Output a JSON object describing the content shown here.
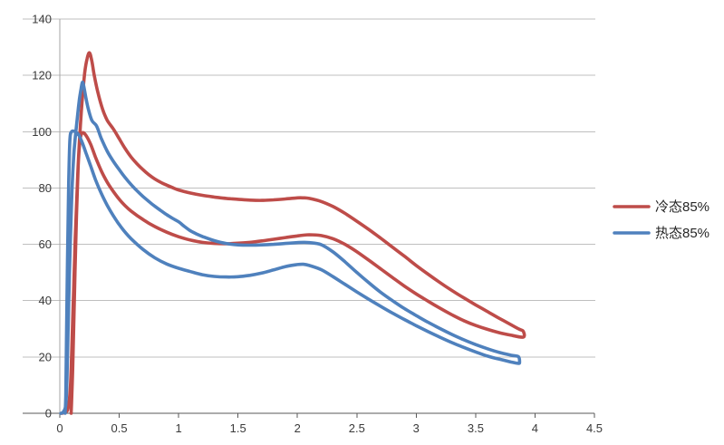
{
  "chart_data": {
    "type": "line",
    "title": "",
    "xlabel": "",
    "ylabel": "",
    "grid": "horizontal",
    "legend_position": "right-outside",
    "x_axis": {
      "min": 0,
      "max": 4.5,
      "ticks": [
        0,
        0.5,
        1,
        1.5,
        2,
        2.5,
        3,
        3.5,
        4,
        4.5
      ],
      "tick_labels": [
        "0",
        "0.5",
        "1",
        "1.5",
        "2",
        "2.5",
        "3",
        "3.5",
        "4",
        "4.5"
      ]
    },
    "y_axis": {
      "min": 0,
      "max": 140,
      "ticks": [
        0,
        20,
        40,
        60,
        80,
        100,
        120,
        140
      ],
      "tick_labels": [
        "0",
        "20",
        "40",
        "60",
        "80",
        "100",
        "120",
        "140"
      ]
    },
    "series": [
      {
        "name": "冷态85%",
        "color": "#BE4C49",
        "shape": "closed-loop",
        "peak": [
          0.25,
          128
        ],
        "points": [
          [
            0.02,
            0
          ],
          [
            0.05,
            0.5
          ],
          [
            0.07,
            2
          ],
          [
            0.09,
            10
          ],
          [
            0.11,
            35
          ],
          [
            0.13,
            62
          ],
          [
            0.15,
            84
          ],
          [
            0.17,
            100
          ],
          [
            0.19,
            112
          ],
          [
            0.21,
            121
          ],
          [
            0.23,
            126
          ],
          [
            0.25,
            128
          ],
          [
            0.27,
            125
          ],
          [
            0.29,
            120
          ],
          [
            0.32,
            114
          ],
          [
            0.36,
            108
          ],
          [
            0.4,
            104
          ],
          [
            0.45,
            101
          ],
          [
            0.5,
            97.5
          ],
          [
            0.55,
            94
          ],
          [
            0.6,
            91
          ],
          [
            0.65,
            88.6
          ],
          [
            0.7,
            86.5
          ],
          [
            0.75,
            84.7
          ],
          [
            0.8,
            83.2
          ],
          [
            0.85,
            82
          ],
          [
            0.9,
            81
          ],
          [
            0.95,
            80.1
          ],
          [
            1.0,
            79.3
          ],
          [
            1.1,
            78.2
          ],
          [
            1.2,
            77.4
          ],
          [
            1.3,
            76.8
          ],
          [
            1.4,
            76.3
          ],
          [
            1.5,
            76
          ],
          [
            1.6,
            75.7
          ],
          [
            1.7,
            75.6
          ],
          [
            1.8,
            75.8
          ],
          [
            1.9,
            76.1
          ],
          [
            2.0,
            76.5
          ],
          [
            2.05,
            76.5
          ],
          [
            2.1,
            76.3
          ],
          [
            2.2,
            75.2
          ],
          [
            2.3,
            73.4
          ],
          [
            2.4,
            71
          ],
          [
            2.5,
            68.2
          ],
          [
            2.6,
            65.3
          ],
          [
            2.7,
            62.2
          ],
          [
            2.8,
            59
          ],
          [
            2.9,
            55.8
          ],
          [
            3.0,
            52.5
          ],
          [
            3.1,
            49.4
          ],
          [
            3.2,
            46.4
          ],
          [
            3.3,
            43.6
          ],
          [
            3.4,
            41
          ],
          [
            3.5,
            38.5
          ],
          [
            3.6,
            36.1
          ],
          [
            3.7,
            33.7
          ],
          [
            3.8,
            31.4
          ],
          [
            3.87,
            29.8
          ],
          [
            3.9,
            29.2
          ],
          [
            3.91,
            27.5
          ],
          [
            3.89,
            27
          ],
          [
            3.8,
            27.7
          ],
          [
            3.7,
            28.6
          ],
          [
            3.6,
            29.8
          ],
          [
            3.5,
            31.2
          ],
          [
            3.4,
            32.9
          ],
          [
            3.3,
            35
          ],
          [
            3.2,
            37.3
          ],
          [
            3.1,
            39.8
          ],
          [
            3.0,
            42.4
          ],
          [
            2.9,
            45.2
          ],
          [
            2.8,
            48.2
          ],
          [
            2.7,
            51.3
          ],
          [
            2.6,
            54.4
          ],
          [
            2.5,
            57.4
          ],
          [
            2.4,
            60
          ],
          [
            2.3,
            62
          ],
          [
            2.2,
            63.1
          ],
          [
            2.1,
            63.4
          ],
          [
            2.0,
            63
          ],
          [
            1.9,
            62.4
          ],
          [
            1.8,
            61.8
          ],
          [
            1.7,
            61.2
          ],
          [
            1.6,
            60.7
          ],
          [
            1.5,
            60.4
          ],
          [
            1.4,
            60.2
          ],
          [
            1.3,
            60.3
          ],
          [
            1.2,
            60.7
          ],
          [
            1.1,
            61.5
          ],
          [
            1.0,
            62.7
          ],
          [
            0.9,
            64.3
          ],
          [
            0.8,
            66.3
          ],
          [
            0.7,
            68.8
          ],
          [
            0.6,
            71.8
          ],
          [
            0.55,
            73.7
          ],
          [
            0.5,
            76
          ],
          [
            0.45,
            78.8
          ],
          [
            0.4,
            82
          ],
          [
            0.35,
            86
          ],
          [
            0.3,
            91
          ],
          [
            0.26,
            95.5
          ],
          [
            0.22,
            98.7
          ],
          [
            0.19,
            99.6
          ],
          [
            0.17,
            97
          ],
          [
            0.155,
            88
          ],
          [
            0.14,
            70
          ],
          [
            0.125,
            45
          ],
          [
            0.11,
            18
          ],
          [
            0.1,
            5
          ],
          [
            0.095,
            0
          ]
        ]
      },
      {
        "name": "热态85%",
        "color": "#4F81BD",
        "shape": "closed-loop",
        "peak": [
          0.19,
          117.5
        ],
        "points": [
          [
            0.01,
            0
          ],
          [
            0.03,
            0.5
          ],
          [
            0.05,
            3
          ],
          [
            0.06,
            12
          ],
          [
            0.07,
            30
          ],
          [
            0.08,
            48
          ],
          [
            0.09,
            63
          ],
          [
            0.1,
            76
          ],
          [
            0.11,
            86
          ],
          [
            0.12,
            93
          ],
          [
            0.135,
            100
          ],
          [
            0.15,
            106
          ],
          [
            0.165,
            111.5
          ],
          [
            0.18,
            115.5
          ],
          [
            0.19,
            117.5
          ],
          [
            0.2,
            116.5
          ],
          [
            0.22,
            112
          ],
          [
            0.24,
            108
          ],
          [
            0.27,
            104
          ],
          [
            0.31,
            102
          ],
          [
            0.35,
            97.5
          ],
          [
            0.4,
            93
          ],
          [
            0.45,
            89.5
          ],
          [
            0.5,
            86.5
          ],
          [
            0.55,
            83.7
          ],
          [
            0.6,
            81.2
          ],
          [
            0.65,
            79
          ],
          [
            0.7,
            77
          ],
          [
            0.75,
            75.2
          ],
          [
            0.8,
            73.5
          ],
          [
            0.85,
            72
          ],
          [
            0.9,
            70.5
          ],
          [
            0.95,
            69.2
          ],
          [
            1.0,
            68
          ],
          [
            1.05,
            66.3
          ],
          [
            1.1,
            64.8
          ],
          [
            1.15,
            63.7
          ],
          [
            1.2,
            62.8
          ],
          [
            1.3,
            61.3
          ],
          [
            1.4,
            60.3
          ],
          [
            1.5,
            59.8
          ],
          [
            1.6,
            59.7
          ],
          [
            1.7,
            59.8
          ],
          [
            1.8,
            60
          ],
          [
            1.9,
            60.3
          ],
          [
            2.0,
            60.6
          ],
          [
            2.05,
            60.7
          ],
          [
            2.1,
            60.6
          ],
          [
            2.2,
            59.9
          ],
          [
            2.3,
            57.3
          ],
          [
            2.4,
            53.8
          ],
          [
            2.5,
            50
          ],
          [
            2.6,
            46.4
          ],
          [
            2.7,
            43
          ],
          [
            2.8,
            40
          ],
          [
            2.9,
            37.2
          ],
          [
            3.0,
            34.7
          ],
          [
            3.1,
            32.3
          ],
          [
            3.2,
            30.1
          ],
          [
            3.3,
            28
          ],
          [
            3.4,
            26.1
          ],
          [
            3.5,
            24.4
          ],
          [
            3.6,
            22.9
          ],
          [
            3.7,
            21.6
          ],
          [
            3.8,
            20.6
          ],
          [
            3.86,
            20.1
          ],
          [
            3.87,
            18.2
          ],
          [
            3.86,
            17.7
          ],
          [
            3.8,
            18.2
          ],
          [
            3.7,
            19.2
          ],
          [
            3.6,
            20.3
          ],
          [
            3.5,
            21.8
          ],
          [
            3.4,
            23.4
          ],
          [
            3.3,
            25.1
          ],
          [
            3.2,
            27
          ],
          [
            3.1,
            29
          ],
          [
            3.0,
            31.1
          ],
          [
            2.9,
            33.3
          ],
          [
            2.8,
            35.6
          ],
          [
            2.7,
            38
          ],
          [
            2.6,
            40.5
          ],
          [
            2.5,
            43.1
          ],
          [
            2.4,
            45.8
          ],
          [
            2.3,
            48.5
          ],
          [
            2.2,
            51
          ],
          [
            2.1,
            52.5
          ],
          [
            2.05,
            52.9
          ],
          [
            2.0,
            52.8
          ],
          [
            1.9,
            52.1
          ],
          [
            1.8,
            50.9
          ],
          [
            1.7,
            49.8
          ],
          [
            1.6,
            49
          ],
          [
            1.5,
            48.5
          ],
          [
            1.4,
            48.4
          ],
          [
            1.3,
            48.6
          ],
          [
            1.2,
            49.2
          ],
          [
            1.1,
            50.3
          ],
          [
            1.0,
            51.5
          ],
          [
            0.9,
            53
          ],
          [
            0.8,
            55.2
          ],
          [
            0.7,
            58.2
          ],
          [
            0.6,
            62
          ],
          [
            0.55,
            64.3
          ],
          [
            0.5,
            67
          ],
          [
            0.45,
            70.2
          ],
          [
            0.4,
            73.8
          ],
          [
            0.35,
            78
          ],
          [
            0.3,
            83
          ],
          [
            0.26,
            87.8
          ],
          [
            0.22,
            92.5
          ],
          [
            0.19,
            96
          ],
          [
            0.16,
            98.8
          ],
          [
            0.13,
            100
          ],
          [
            0.1,
            100
          ],
          [
            0.085,
            97
          ],
          [
            0.075,
            82
          ],
          [
            0.065,
            55
          ],
          [
            0.055,
            22
          ],
          [
            0.05,
            6
          ],
          [
            0.045,
            0
          ]
        ]
      }
    ]
  },
  "colors": {
    "background": "#FFFFFF",
    "gridline": "#BFBFBF",
    "y_axis_line": "#A6A6A6",
    "x_axis_line": "#595959",
    "tick_label": "#3A3A3A",
    "legend_text": "#262626"
  }
}
